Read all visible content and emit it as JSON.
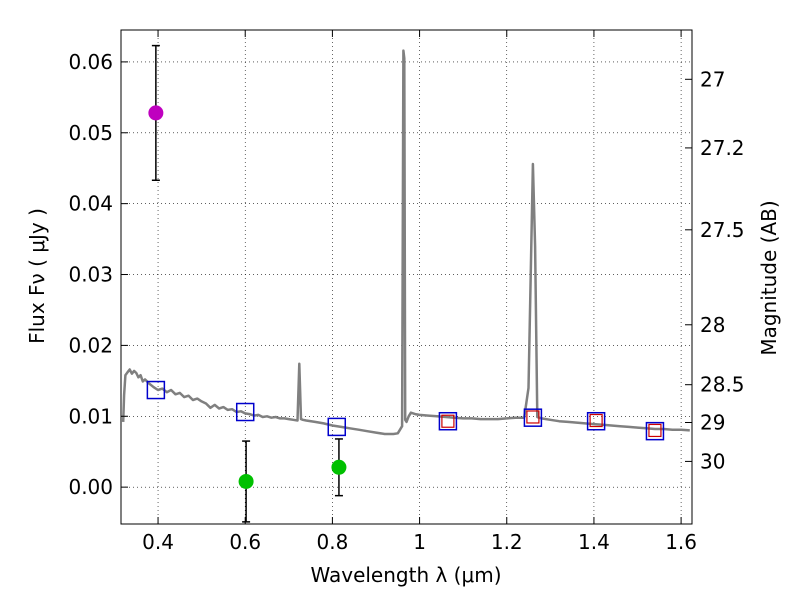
{
  "chart_data": {
    "type": "scatter",
    "xlabel": "Wavelength  λ (μm)",
    "ylabel_left": "Flux  Fν  ( μJy )",
    "ylabel_right": "Magnitude (AB)",
    "xlim": [
      0.315,
      1.625
    ],
    "ylim": [
      -0.0052,
      0.0645
    ],
    "x_ticks": [
      0.4,
      0.6,
      0.8,
      1.0,
      1.2,
      1.4,
      1.6
    ],
    "x_tick_labels": [
      "0.4",
      "0.6",
      "0.8",
      "1",
      "1.2",
      "1.4",
      "1.6"
    ],
    "y_ticks": [
      0.0,
      0.01,
      0.02,
      0.03,
      0.04,
      0.05,
      0.06
    ],
    "y_tick_labels": [
      "0.00",
      "0.01",
      "0.02",
      "0.03",
      "0.04",
      "0.05",
      "0.06"
    ],
    "mag_ticks": [
      27,
      27.2,
      27.5,
      28,
      28.5,
      29,
      30
    ],
    "mag_tick_labels": [
      "27",
      "27.2",
      "27.5",
      "28",
      "28.5",
      "29",
      "30"
    ],
    "grid": true,
    "colors": {
      "spectrum": "#808080",
      "magenta": "#bf00bf",
      "green": "#00c000",
      "blue_square": "#0000cc",
      "red_square": "#cc0000",
      "errorbar": "#000000"
    },
    "spectrum": {
      "name": "model spectrum",
      "x": [
        0.32,
        0.322,
        0.325,
        0.33,
        0.335,
        0.34,
        0.345,
        0.35,
        0.355,
        0.36,
        0.365,
        0.37,
        0.38,
        0.39,
        0.4,
        0.41,
        0.42,
        0.43,
        0.44,
        0.45,
        0.46,
        0.47,
        0.48,
        0.49,
        0.5,
        0.51,
        0.52,
        0.53,
        0.54,
        0.55,
        0.56,
        0.57,
        0.58,
        0.59,
        0.6,
        0.61,
        0.62,
        0.63,
        0.64,
        0.65,
        0.66,
        0.67,
        0.68,
        0.69,
        0.7,
        0.71,
        0.72,
        0.724,
        0.728,
        0.732,
        0.74,
        0.76,
        0.78,
        0.8,
        0.82,
        0.84,
        0.86,
        0.88,
        0.9,
        0.92,
        0.94,
        0.95,
        0.955,
        0.96,
        0.963,
        0.965,
        0.967,
        0.97,
        0.975,
        0.98,
        0.99,
        1.0,
        1.02,
        1.04,
        1.06,
        1.08,
        1.1,
        1.12,
        1.14,
        1.16,
        1.18,
        1.2,
        1.22,
        1.24,
        1.25,
        1.26,
        1.265,
        1.27,
        1.28,
        1.3,
        1.32,
        1.34,
        1.36,
        1.38,
        1.4,
        1.42,
        1.44,
        1.46,
        1.48,
        1.5,
        1.52,
        1.54,
        1.56,
        1.58,
        1.6,
        1.62
      ],
      "y": [
        0.0092,
        0.013,
        0.0158,
        0.0162,
        0.0166,
        0.016,
        0.0164,
        0.0161,
        0.0155,
        0.0158,
        0.0149,
        0.0152,
        0.0146,
        0.0141,
        0.0137,
        0.0139,
        0.0134,
        0.0137,
        0.0131,
        0.0133,
        0.0127,
        0.0129,
        0.0123,
        0.0125,
        0.0121,
        0.0118,
        0.0112,
        0.0116,
        0.0111,
        0.0113,
        0.0109,
        0.011,
        0.0106,
        0.0107,
        0.0104,
        0.0103,
        0.0101,
        0.0102,
        0.0099,
        0.01,
        0.0098,
        0.0099,
        0.0097,
        0.0097,
        0.0096,
        0.0095,
        0.0094,
        0.0174,
        0.0096,
        0.0095,
        0.0094,
        0.0092,
        0.009,
        0.0087,
        0.0085,
        0.0083,
        0.0081,
        0.0079,
        0.0077,
        0.0075,
        0.0075,
        0.0076,
        0.0081,
        0.0086,
        0.0616,
        0.0605,
        0.0095,
        0.0092,
        0.01,
        0.0105,
        0.0103,
        0.0102,
        0.0101,
        0.01,
        0.0099,
        0.0098,
        0.0097,
        0.0097,
        0.0096,
        0.0096,
        0.0096,
        0.0097,
        0.0098,
        0.0098,
        0.014,
        0.0456,
        0.034,
        0.0099,
        0.0097,
        0.0095,
        0.0093,
        0.0092,
        0.0091,
        0.009,
        0.0089,
        0.0088,
        0.0087,
        0.0086,
        0.0085,
        0.0084,
        0.0083,
        0.0082,
        0.0082,
        0.0081,
        0.0081,
        0.008
      ]
    },
    "points": [
      {
        "name": "magenta point",
        "x": 0.395,
        "y": 0.0528,
        "yerr": 0.0095,
        "color": "magenta"
      },
      {
        "name": "green point 1",
        "x": 0.602,
        "y": 0.0008,
        "yerr": 0.0057,
        "color": "green"
      },
      {
        "name": "green point 2",
        "x": 0.815,
        "y": 0.0028,
        "yerr": 0.004,
        "color": "green"
      }
    ],
    "blue_squares": [
      {
        "x": 0.395,
        "y": 0.0137
      },
      {
        "x": 0.6,
        "y": 0.0106
      },
      {
        "x": 0.81,
        "y": 0.0085
      },
      {
        "x": 1.065,
        "y": 0.0093
      },
      {
        "x": 1.26,
        "y": 0.0098
      },
      {
        "x": 1.405,
        "y": 0.0093
      },
      {
        "x": 1.54,
        "y": 0.0079
      }
    ],
    "red_squares": [
      {
        "x": 1.065,
        "y": 0.0093
      },
      {
        "x": 1.26,
        "y": 0.0099
      },
      {
        "x": 1.405,
        "y": 0.0094
      },
      {
        "x": 1.54,
        "y": 0.008
      }
    ]
  }
}
